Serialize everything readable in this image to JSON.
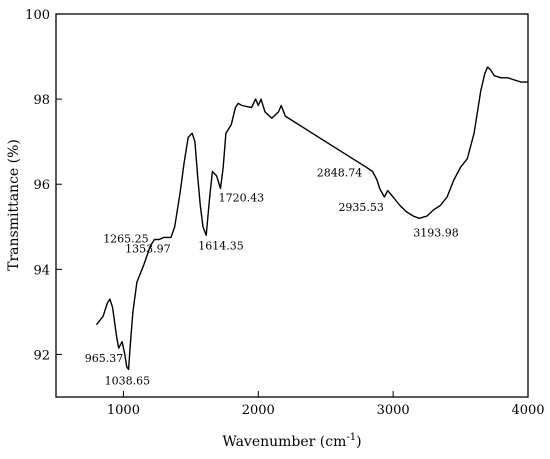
{
  "chart_data": {
    "type": "line",
    "title": "",
    "xlabel": "Wavenumber (cm",
    "xlabel_superscript": "-1",
    "xlabel_suffix": ")",
    "ylabel": "Transmittance (%)",
    "xlim": [
      500,
      4000
    ],
    "ylim": [
      91,
      100
    ],
    "xticks": [
      1000,
      2000,
      3000,
      4000
    ],
    "yticks": [
      92,
      94,
      96,
      98,
      100
    ],
    "grid": false,
    "legend": "none",
    "line_color": "#000000",
    "series": [
      {
        "x": [
          800,
          850,
          880,
          900,
          920,
          950,
          965,
          990,
          1010,
          1025,
          1038,
          1050,
          1070,
          1100,
          1150,
          1200,
          1230,
          1265,
          1300,
          1353,
          1380,
          1420,
          1450,
          1480,
          1510,
          1530,
          1550,
          1570,
          1590,
          1614,
          1640,
          1660,
          1690,
          1720,
          1740,
          1760,
          1800,
          1830,
          1850,
          1880,
          1950,
          1980,
          2000,
          2020,
          2050,
          2100,
          2150,
          2170,
          2200,
          2300,
          2400,
          2600,
          2800,
          2848,
          2880,
          2900,
          2935,
          2960,
          3000,
          3050,
          3100,
          3150,
          3194,
          3250,
          3300,
          3350,
          3400,
          3450,
          3500,
          3550,
          3600,
          3650,
          3680,
          3700,
          3720,
          3750,
          3800,
          3850,
          3900,
          3950,
          4000
        ],
        "y": [
          92.7,
          92.9,
          93.2,
          93.3,
          93.1,
          92.4,
          92.15,
          92.3,
          92.0,
          91.7,
          91.65,
          92.2,
          93.0,
          93.7,
          94.1,
          94.55,
          94.7,
          94.7,
          94.75,
          94.75,
          95.0,
          95.8,
          96.5,
          97.1,
          97.2,
          97.0,
          96.2,
          95.5,
          95.0,
          94.8,
          95.7,
          96.3,
          96.2,
          95.9,
          96.4,
          97.2,
          97.4,
          97.8,
          97.9,
          97.85,
          97.8,
          98.0,
          97.85,
          98.0,
          97.7,
          97.55,
          97.7,
          97.85,
          97.6,
          97.4,
          97.2,
          96.8,
          96.4,
          96.3,
          96.1,
          95.9,
          95.7,
          95.85,
          95.7,
          95.5,
          95.35,
          95.25,
          95.2,
          95.25,
          95.4,
          95.5,
          95.7,
          96.1,
          96.4,
          96.6,
          97.2,
          98.2,
          98.6,
          98.75,
          98.7,
          98.55,
          98.5,
          98.5,
          98.45,
          98.4,
          98.4
        ]
      }
    ],
    "annotations": [
      {
        "text": "965.37",
        "x": 965.37,
        "y": 92.15
      },
      {
        "text": "1038.65",
        "x": 1038.65,
        "y": 91.65
      },
      {
        "text": "1265.25",
        "x": 1265.25,
        "y": 94.7
      },
      {
        "text": "1353.97",
        "x": 1353.97,
        "y": 94.75
      },
      {
        "text": "1614.35",
        "x": 1614.35,
        "y": 94.8
      },
      {
        "text": "1720.43",
        "x": 1720.43,
        "y": 95.9
      },
      {
        "text": "2848.74",
        "x": 2848.74,
        "y": 96.3
      },
      {
        "text": "2935.53",
        "x": 2935.53,
        "y": 95.7
      },
      {
        "text": "3193.98",
        "x": 3193.98,
        "y": 95.2
      }
    ]
  }
}
